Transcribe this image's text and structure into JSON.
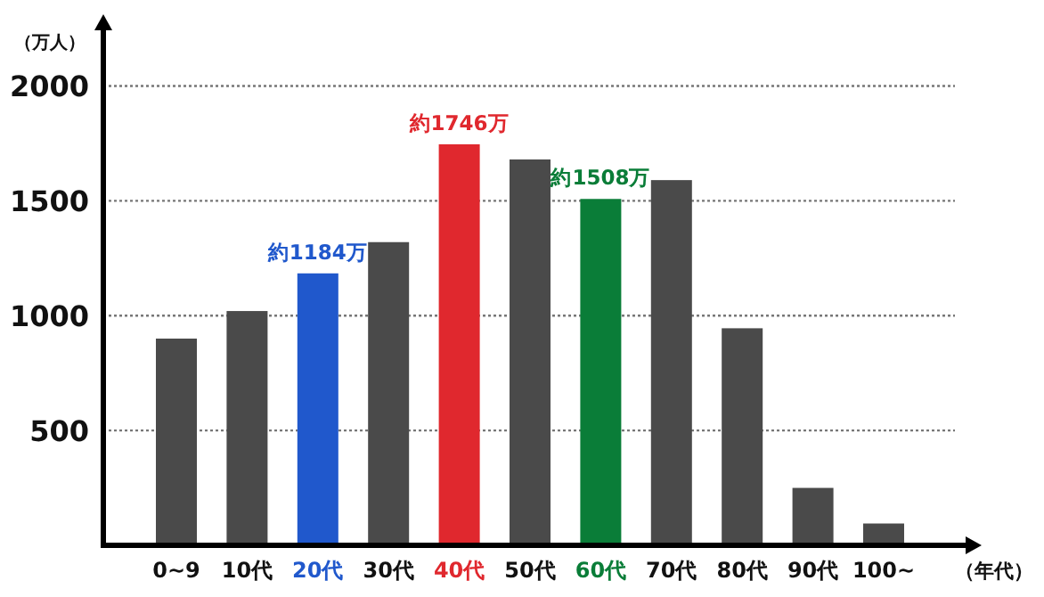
{
  "chart_data": {
    "type": "bar",
    "ylabel": "（万人）",
    "xlabel": "（年代）",
    "categories": [
      "0~9",
      "10代",
      "20代",
      "30代",
      "40代",
      "50代",
      "60代",
      "70代",
      "80代",
      "90代",
      "100~"
    ],
    "values": [
      900,
      1020,
      1184,
      1320,
      1746,
      1680,
      1508,
      1590,
      945,
      250,
      95
    ],
    "colors": [
      "#4a4a4a",
      "#4a4a4a",
      "#2058cc",
      "#4a4a4a",
      "#e0282e",
      "#4a4a4a",
      "#0a7d38",
      "#4a4a4a",
      "#4a4a4a",
      "#4a4a4a",
      "#4a4a4a"
    ],
    "value_labels": [
      null,
      null,
      "約1184万",
      null,
      "約1746万",
      null,
      "約1508万",
      null,
      null,
      null,
      null
    ],
    "ylim": [
      0,
      2250
    ],
    "yticks": [
      500,
      1000,
      1500,
      2000
    ],
    "grid": "y"
  }
}
